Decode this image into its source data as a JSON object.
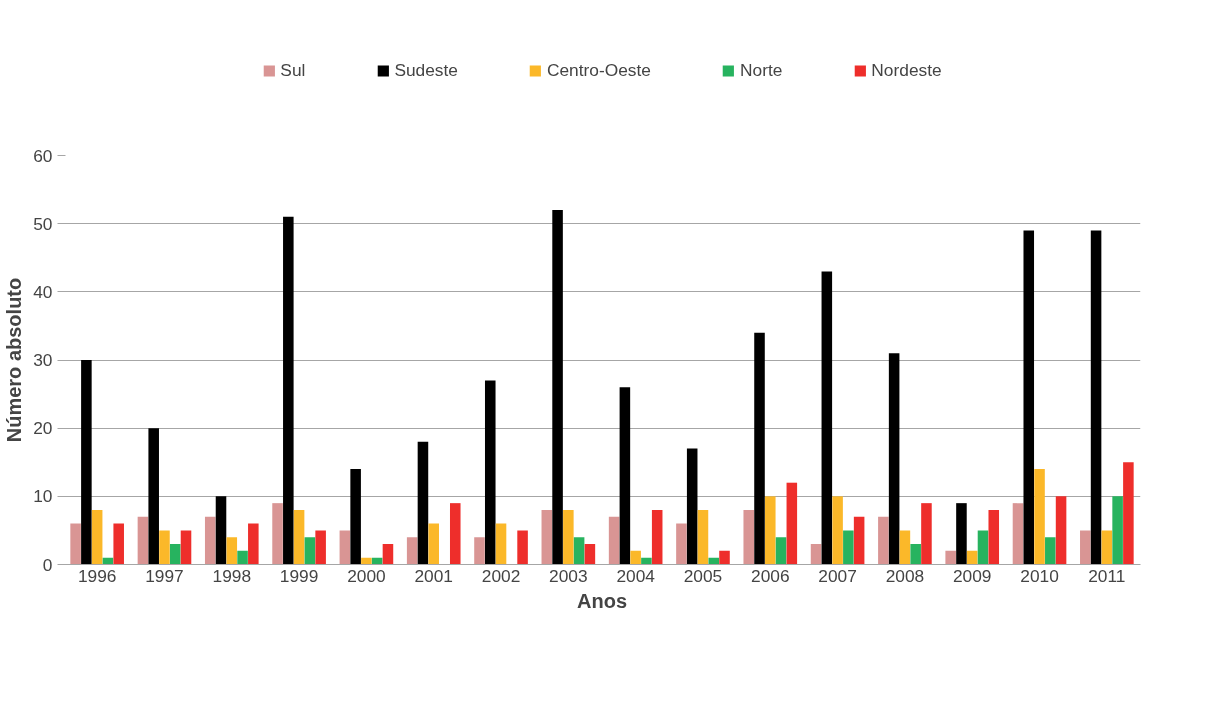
{
  "chart_data": {
    "type": "bar",
    "xlabel": "Anos",
    "ylabel": "Número absoluto",
    "categories": [
      "1996",
      "1997",
      "1998",
      "1999",
      "2000",
      "2001",
      "2002",
      "2003",
      "2004",
      "2005",
      "2006",
      "2007",
      "2008",
      "2009",
      "2010",
      "2011"
    ],
    "series": [
      {
        "name": "Sul",
        "color": "#d99594",
        "values": [
          6,
          7,
          7,
          9,
          5,
          4,
          4,
          8,
          7,
          6,
          8,
          3,
          7,
          2,
          9,
          5
        ]
      },
      {
        "name": "Sudeste",
        "color": "#000000",
        "values": [
          30,
          20,
          10,
          51,
          14,
          18,
          27,
          52,
          26,
          17,
          34,
          43,
          31,
          9,
          49,
          49
        ]
      },
      {
        "name": "Centro-Oeste",
        "color": "#fbb829",
        "values": [
          8,
          5,
          4,
          8,
          1,
          6,
          6,
          8,
          2,
          8,
          10,
          10,
          5,
          2,
          14,
          5
        ]
      },
      {
        "name": "Norte",
        "color": "#27b35f",
        "values": [
          1,
          3,
          2,
          4,
          1,
          0,
          0,
          4,
          1,
          1,
          4,
          5,
          3,
          5,
          4,
          10
        ]
      },
      {
        "name": "Nordeste",
        "color": "#ee2e2b",
        "values": [
          6,
          5,
          6,
          5,
          3,
          9,
          5,
          3,
          8,
          2,
          12,
          7,
          9,
          8,
          10,
          15
        ]
      }
    ],
    "ylim": [
      0,
      60
    ],
    "yticks": [
      0,
      10,
      20,
      30,
      40,
      50,
      60
    ],
    "grid": "y",
    "legend": "top"
  }
}
